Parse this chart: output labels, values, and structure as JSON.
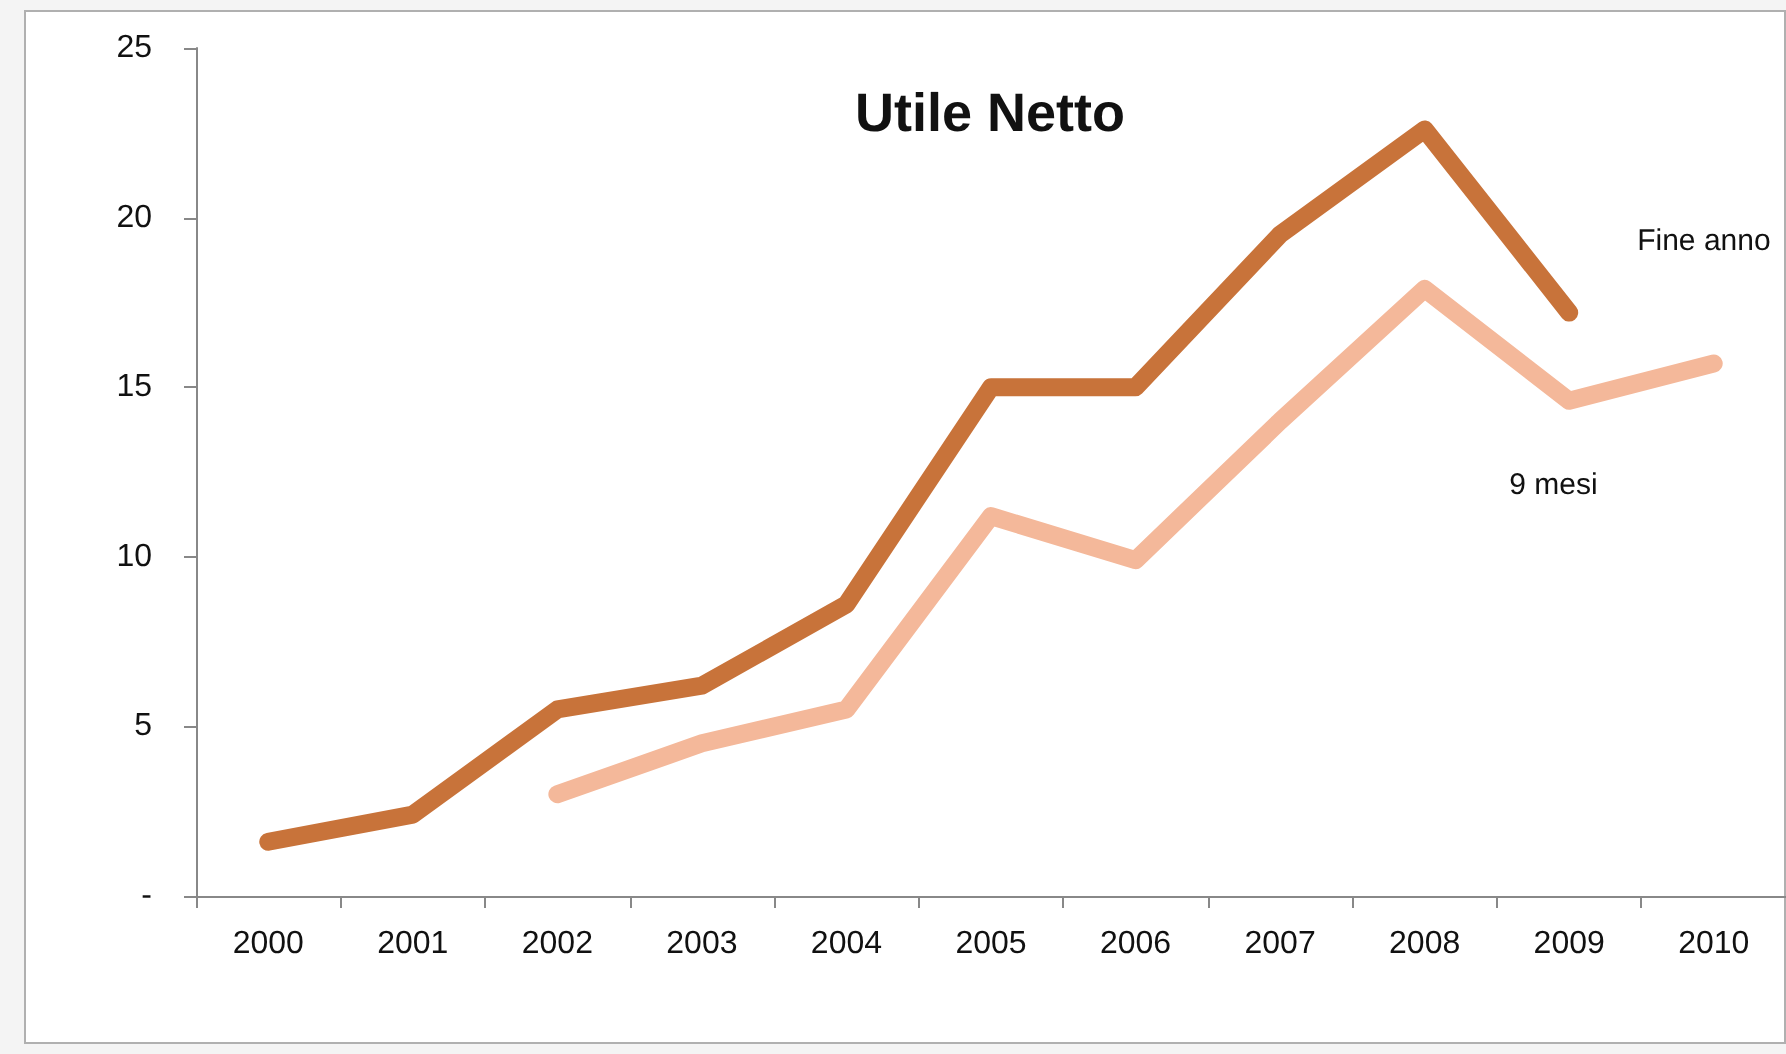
{
  "chart_data": {
    "type": "line",
    "title": "Utile Netto",
    "categories": [
      "2000",
      "2001",
      "2002",
      "2003",
      "2004",
      "2005",
      "2006",
      "2007",
      "2008",
      "2009",
      "2010"
    ],
    "series": [
      {
        "name": "Fine anno",
        "color": "#c8733a",
        "values": [
          1.6,
          2.4,
          5.5,
          6.2,
          8.6,
          15.0,
          15.0,
          19.5,
          22.6,
          17.2,
          null
        ]
      },
      {
        "name": "9 mesi",
        "color": "#f4b89a",
        "values": [
          null,
          null,
          3.0,
          4.5,
          5.5,
          11.2,
          9.9,
          14.0,
          17.9,
          14.6,
          15.7
        ]
      }
    ],
    "ylim": [
      0,
      25
    ],
    "yticks": [
      {
        "value": 0,
        "label": "-"
      },
      5,
      10,
      15,
      20,
      25
    ],
    "grid": false,
    "legend": false,
    "line_style": "solid"
  }
}
